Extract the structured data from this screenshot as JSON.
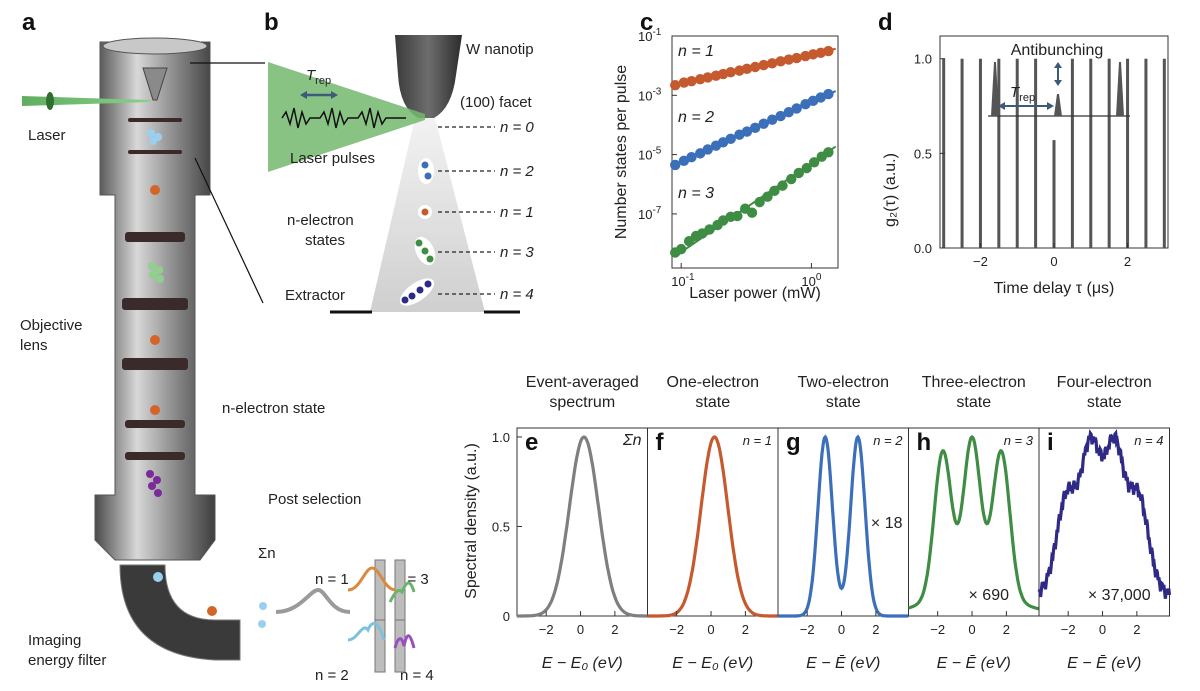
{
  "panels": {
    "a": {
      "letter": "a",
      "labels": {
        "laser": "Laser",
        "objective": "Objective\nlens",
        "n_state": "n-electron state",
        "post_selection": "Post selection",
        "filter": "Imaging\nenergy filter",
        "sum_n": "Σn",
        "n1": "n = 1",
        "n2": "n = 2",
        "n3": "n = 3",
        "n4": "n = 4"
      }
    },
    "b": {
      "letter": "b",
      "labels": {
        "tip": "W nanotip",
        "facet": "(100) facet",
        "trep": "T",
        "trep_sub": "rep",
        "pulses": "Laser pulses",
        "nstates_1": "n-electron",
        "nstates_2": "states",
        "extractor": "Extractor"
      },
      "levels": [
        "n = 0",
        "n = 2",
        "n = 1",
        "n = 3",
        "n = 4"
      ]
    }
  },
  "chart_data": [
    {
      "panel": "c",
      "type": "scatter",
      "xscale": "log",
      "yscale": "log",
      "xlabel": "Laser power (mW)",
      "ylabel": "Number states per pulse",
      "xlim": [
        0.085,
        1.6
      ],
      "ylim": [
        1.5e-09,
        0.1
      ],
      "xticks": [
        {
          "v": 0.1,
          "label": "10",
          "exp": "-1"
        },
        {
          "v": 1,
          "label": "10",
          "exp": "0"
        }
      ],
      "yticks": [
        {
          "v": 0.1,
          "label": "10",
          "exp": "-1"
        },
        {
          "v": 0.001,
          "label": "10",
          "exp": "-3"
        },
        {
          "v": 1e-05,
          "label": "10",
          "exp": "-5"
        },
        {
          "v": 1e-07,
          "label": "10",
          "exp": "-7"
        }
      ],
      "series": [
        {
          "name": "n = 1",
          "color": "#c65a2f",
          "slope": 1,
          "x": [
            0.09,
            0.105,
            0.12,
            0.14,
            0.16,
            0.185,
            0.21,
            0.24,
            0.28,
            0.32,
            0.37,
            0.43,
            0.5,
            0.58,
            0.67,
            0.77,
            0.9,
            1.03,
            1.18,
            1.35
          ],
          "y": [
            0.0022,
            0.0027,
            0.003,
            0.0035,
            0.004,
            0.0046,
            0.0052,
            0.006,
            0.0068,
            0.0078,
            0.009,
            0.0105,
            0.012,
            0.014,
            0.016,
            0.018,
            0.021,
            0.024,
            0.027,
            0.031
          ]
        },
        {
          "name": "n = 2",
          "color": "#3c6fba",
          "slope": 2,
          "x": [
            0.09,
            0.105,
            0.12,
            0.14,
            0.16,
            0.185,
            0.21,
            0.24,
            0.28,
            0.32,
            0.37,
            0.43,
            0.5,
            0.58,
            0.67,
            0.77,
            0.9,
            1.03,
            1.18,
            1.35
          ],
          "y": [
            4.5e-06,
            6.2e-06,
            8.2e-06,
            1.1e-05,
            1.5e-05,
            2e-05,
            2.6e-05,
            3.4e-05,
            4.7e-05,
            6e-05,
            8e-05,
            0.00011,
            0.00015,
            0.0002,
            0.00027,
            0.00036,
            0.0005,
            0.00065,
            0.00085,
            0.0011
          ]
        },
        {
          "name": "n = 3",
          "color": "#3f8d45",
          "slope": 3,
          "x": [
            0.09,
            0.1,
            0.115,
            0.13,
            0.145,
            0.165,
            0.19,
            0.21,
            0.24,
            0.27,
            0.31,
            0.35,
            0.4,
            0.46,
            0.52,
            0.6,
            0.7,
            0.8,
            0.92,
            1.05,
            1.2,
            1.35
          ],
          "y": [
            5e-09,
            6.5e-09,
            1.2e-08,
            1.8e-08,
            2.2e-08,
            3e-08,
            4.2e-08,
            6e-08,
            8e-08,
            8.5e-08,
            1.5e-07,
            1.1e-07,
            2.5e-07,
            3.8e-07,
            6e-07,
            9e-07,
            1.5e-06,
            2.4e-06,
            3.5e-06,
            5.5e-06,
            8.5e-06,
            1.2e-05
          ]
        }
      ]
    },
    {
      "panel": "d",
      "type": "bar",
      "xlabel": "Time delay τ (μs)",
      "ylabel": "g₂(τ) (a.u.)",
      "xlim": [
        -3.1,
        3.1
      ],
      "ylim": [
        0,
        1.12
      ],
      "xticks": [
        -2,
        0,
        2
      ],
      "yticks": [
        0,
        0.5,
        1.0
      ],
      "x": [
        -3.0,
        -2.5,
        -2.0,
        -1.5,
        -1.0,
        -0.5,
        0,
        0.5,
        1.0,
        1.5,
        2.0,
        2.5,
        3.0
      ],
      "values": [
        1.0,
        1.0,
        1.0,
        1.0,
        1.0,
        1.0,
        0.57,
        1.0,
        1.0,
        1.0,
        1.0,
        1.0,
        1.0
      ],
      "inset": {
        "label": "Antibunching",
        "trep": "T",
        "trep_sub": "rep"
      }
    },
    {
      "panel": "e-i",
      "type": "line",
      "ylabel": "Spectral density (a.u.)",
      "yticks": [
        0,
        0.5,
        1.0
      ],
      "ylim": [
        0,
        1.05
      ],
      "xlim": [
        -3.7,
        3.9
      ],
      "xticks": [
        -2,
        0,
        2
      ],
      "subplots": [
        {
          "letter": "e",
          "title": "Event-averaged\nspectrum",
          "tag": "Σn",
          "scale": "",
          "color": "#7f7f7f",
          "xlabel": "E − E₀ (eV)",
          "peaks": [
            {
              "mu": 0.2,
              "sigma": 0.85,
              "a": 1.0
            }
          ]
        },
        {
          "letter": "f",
          "title": "One-electron\nstate",
          "tag": "n = 1",
          "scale": "",
          "color": "#c65a2f",
          "xlabel": "E − E₀ (eV)",
          "peaks": [
            {
              "mu": 0.2,
              "sigma": 0.78,
              "a": 1.0
            }
          ]
        },
        {
          "letter": "g",
          "title": "Two-electron\nstate",
          "tag": "n = 2",
          "scale": "× 18",
          "color": "#3c6fba",
          "xlabel": "E − Ē (eV)",
          "peaks": [
            {
              "mu": -0.95,
              "sigma": 0.42,
              "a": 0.99
            },
            {
              "mu": 0.95,
              "sigma": 0.42,
              "a": 0.99
            }
          ]
        },
        {
          "letter": "h",
          "title": "Three-electron\nstate",
          "tag": "n = 3",
          "scale": "× 690",
          "color": "#3f8d45",
          "xlabel": "E − Ē (eV)",
          "peaks": [
            {
              "mu": -1.7,
              "sigma": 0.5,
              "a": 0.8
            },
            {
              "mu": 0,
              "sigma": 0.5,
              "a": 0.85
            },
            {
              "mu": 1.7,
              "sigma": 0.5,
              "a": 0.8
            },
            {
              "mu": 0,
              "sigma": 2.6,
              "a": 0.12
            }
          ]
        },
        {
          "letter": "i",
          "title": "Four-electron\nstate",
          "tag": "n = 4",
          "scale": "× 37,000",
          "color": "#2e2a86",
          "xlabel": "E − Ē (eV)",
          "peaks": [
            {
              "mu": -2.1,
              "sigma": 0.55,
              "a": 0.5
            },
            {
              "mu": -0.7,
              "sigma": 0.55,
              "a": 0.75
            },
            {
              "mu": 0.7,
              "sigma": 0.55,
              "a": 0.75
            },
            {
              "mu": 2.1,
              "sigma": 0.55,
              "a": 0.5
            },
            {
              "mu": 0,
              "sigma": 2.8,
              "a": 0.35
            }
          ]
        }
      ]
    }
  ]
}
